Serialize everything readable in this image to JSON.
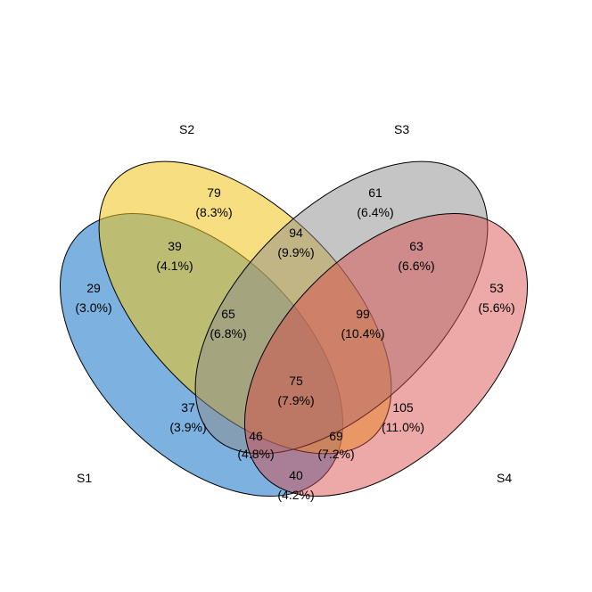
{
  "sets": [
    {
      "id": "s1",
      "label": "S1",
      "color": "#1f78c8"
    },
    {
      "id": "s2",
      "label": "S2",
      "color": "#f0c419"
    },
    {
      "id": "s3",
      "label": "S3",
      "color": "#8c8c8c"
    },
    {
      "id": "s4",
      "label": "S4",
      "color": "#d94a4a"
    }
  ],
  "regions": {
    "s1": {
      "count": "29",
      "pct": "(3.0%)"
    },
    "s2": {
      "count": "79",
      "pct": "(8.3%)"
    },
    "s3": {
      "count": "61",
      "pct": "(6.4%)"
    },
    "s4": {
      "count": "53",
      "pct": "(5.6%)"
    },
    "s1_s2": {
      "count": "39",
      "pct": "(4.1%)"
    },
    "s2_s3": {
      "count": "94",
      "pct": "(9.9%)"
    },
    "s3_s4": {
      "count": "63",
      "pct": "(6.6%)"
    },
    "s1_s2_s3": {
      "count": "65",
      "pct": "(6.8%)"
    },
    "s2_s3_s4": {
      "count": "99",
      "pct": "(10.4%)"
    },
    "all": {
      "count": "75",
      "pct": "(7.9%)"
    },
    "s1_s3": {
      "count": "37",
      "pct": "(3.9%)"
    },
    "s2_s4": {
      "count": "105",
      "pct": "(11.0%)"
    },
    "s1_s3_s4": {
      "count": "46",
      "pct": "(4.8%)"
    },
    "s1_s2_s4": {
      "count": "69",
      "pct": "(7.2%)"
    },
    "s1_s4": {
      "count": "40",
      "pct": "(4.2%)"
    }
  }
}
